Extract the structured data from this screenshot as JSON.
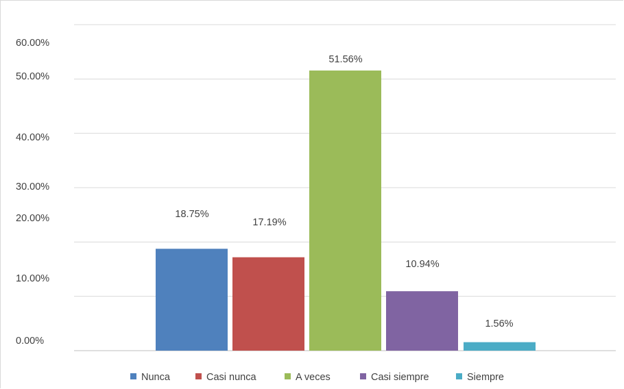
{
  "chart_data": {
    "type": "bar",
    "title": "",
    "xlabel": "",
    "ylabel": "",
    "categories": [
      "Nunca",
      "Casi nunca",
      "A veces",
      "Casi siempre",
      "Siempre"
    ],
    "values": [
      18.75,
      17.19,
      51.56,
      10.94,
      1.56
    ],
    "data_labels": [
      "18.75%",
      "17.19%",
      "51.56%",
      "10.94%",
      "1.56%"
    ],
    "colors": [
      "#4f81bd",
      "#c0504d",
      "#9bbb59",
      "#8064a2",
      "#4bacc6"
    ],
    "y_tick_labels": [
      "0.00%",
      "10.00%",
      "20.00%",
      "30.00%",
      "40.00%",
      "50.00%",
      "60.00%"
    ],
    "ylim": [
      0,
      60
    ],
    "grid": true,
    "legend_position": "bottom",
    "legend": [
      "Nunca",
      "Casi nunca",
      "A veces",
      "Casi siempre",
      "Siempre"
    ]
  }
}
